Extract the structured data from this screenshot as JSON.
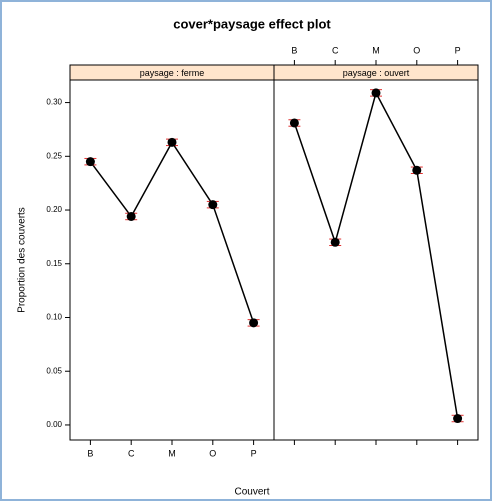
{
  "chart_data": {
    "type": "line",
    "title": "cover*paysage effect plot",
    "ylabel": "Proportion des couverts",
    "xlabel": "Couvert",
    "categories": [
      "B",
      "C",
      "M",
      "O",
      "P"
    ],
    "ylim": [
      -0.014,
      0.321
    ],
    "yticks": [
      {
        "value": 0,
        "label": "0.00"
      },
      {
        "value": 0.05,
        "label": "0.05"
      },
      {
        "value": 0.1,
        "label": "0.10"
      },
      {
        "value": 0.15,
        "label": "0.15"
      },
      {
        "value": 0.2,
        "label": "0.20"
      },
      {
        "value": 0.25,
        "label": "0.25"
      },
      {
        "value": 0.3,
        "label": "0.30"
      }
    ],
    "color": "#000000",
    "error_color": "#e03030",
    "strip_color": "#ffe5cc",
    "panels": [
      {
        "name": "paysage : ferme",
        "values": [
          0.245,
          0.194,
          0.263,
          0.205,
          0.095
        ],
        "errors": [
          0.003,
          0.003,
          0.003,
          0.003,
          0.003
        ]
      },
      {
        "name": "paysage : ouvert",
        "values": [
          0.281,
          0.17,
          0.309,
          0.237,
          0.006
        ],
        "errors": [
          0.003,
          0.003,
          0.003,
          0.003,
          0.003
        ]
      }
    ]
  }
}
